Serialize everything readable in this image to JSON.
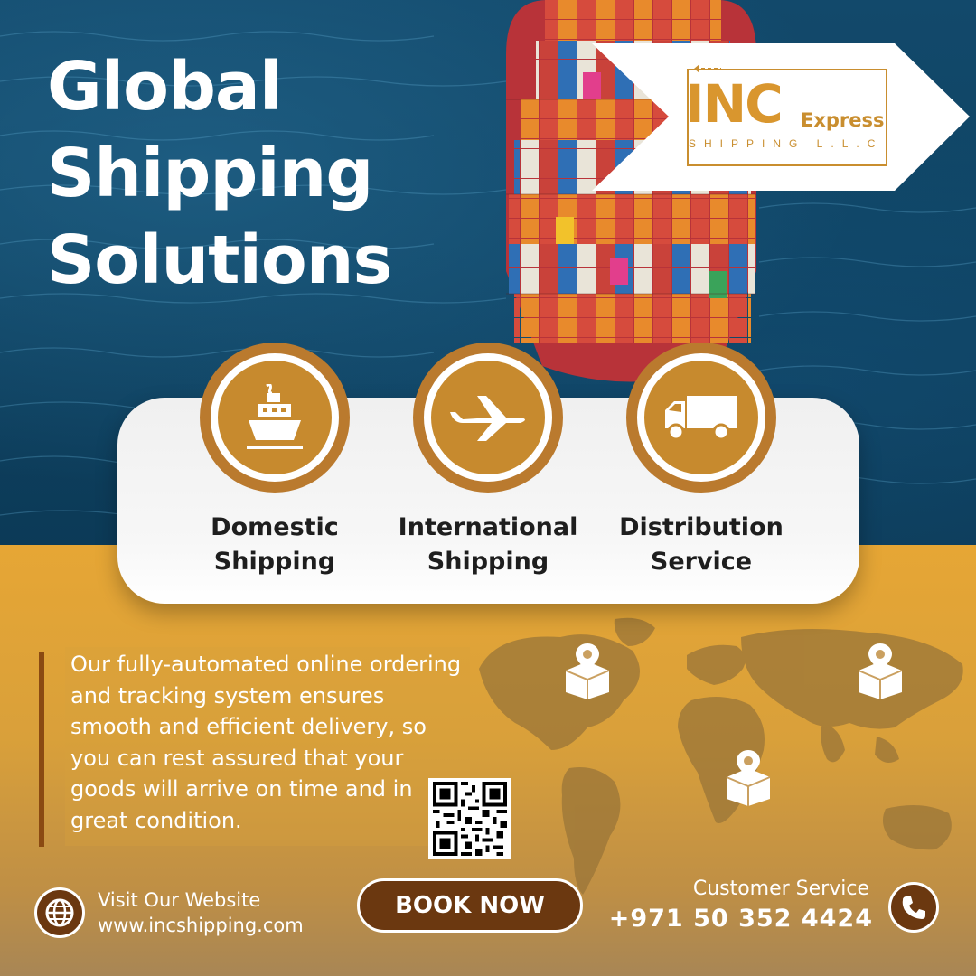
{
  "headline": {
    "line1": "Global",
    "line2": "Shipping",
    "line3": "Solutions"
  },
  "brand": {
    "name": "INC",
    "suffix": "Express",
    "tagline": "SHIPPING L.L.C"
  },
  "services": [
    {
      "line1": "Domestic",
      "line2": "Shipping",
      "icon": "ship-icon"
    },
    {
      "line1": "International",
      "line2": "Shipping",
      "icon": "airplane-icon"
    },
    {
      "line1": "Distribution",
      "line2": "Service",
      "icon": "truck-icon"
    }
  ],
  "description": {
    "lines": [
      "Our fully-automated online ordering",
      "and tracking system ensures",
      "smooth and efficient delivery, so",
      "you can rest assured that your",
      "goods will arrive on time and in",
      "great condition."
    ]
  },
  "footer": {
    "website_label": "Visit Our Website",
    "website_url": "www.incshipping.com",
    "cta_label": "BOOK NOW",
    "service_label": "Customer Service",
    "phone": "+971 50 352 4424"
  },
  "colors": {
    "ocean": "#0f4464",
    "gold": "#e6a635",
    "accent_brown": "#6b3810",
    "circle_gold": "#c78a2e",
    "logo_gold": "#c98e2f"
  },
  "icons": [
    "ship-icon",
    "airplane-icon",
    "truck-icon",
    "globe-icon",
    "phone-icon",
    "package-pin-icon",
    "qr-code",
    "world-map"
  ]
}
